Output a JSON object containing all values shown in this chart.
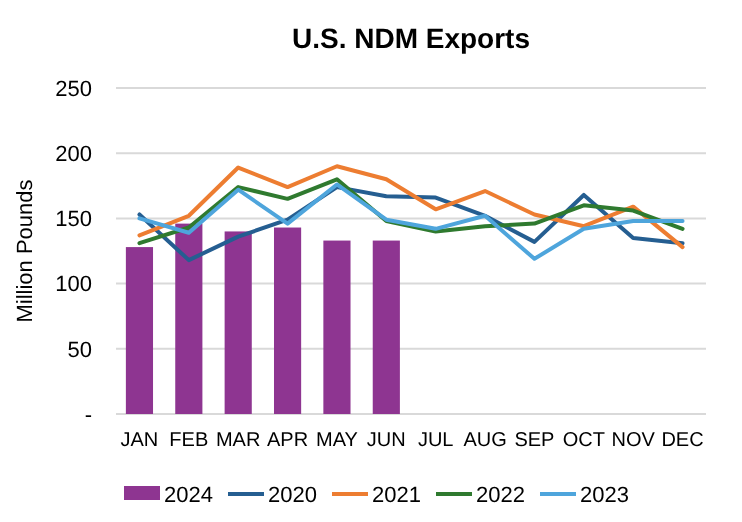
{
  "chart_data": {
    "type": "bar",
    "title": "U.S. NDM Exports",
    "ylabel": "Million Pounds",
    "categories": [
      "JAN",
      "FEB",
      "MAR",
      "APR",
      "MAY",
      "JUN",
      "JUL",
      "AUG",
      "SEP",
      "OCT",
      "NOV",
      "DEC"
    ],
    "series": [
      {
        "name": "2024",
        "color": "#8e3591",
        "values": [
          128,
          146,
          140,
          143,
          133,
          133,
          null,
          null,
          null,
          null,
          null,
          null
        ]
      },
      {
        "name": "2020",
        "type": "line",
        "color": "#255e91",
        "values": [
          153,
          118,
          136,
          149,
          174,
          167,
          166,
          152,
          132,
          168,
          135,
          131
        ]
      },
      {
        "name": "2021",
        "type": "line",
        "color": "#ed7d31",
        "values": [
          137,
          152,
          189,
          174,
          190,
          180,
          157,
          171,
          153,
          144,
          159,
          128
        ]
      },
      {
        "name": "2022",
        "type": "line",
        "color": "#2f7a2f",
        "values": [
          131,
          143,
          174,
          165,
          180,
          148,
          140,
          144,
          146,
          160,
          156,
          142
        ]
      },
      {
        "name": "2023",
        "type": "line",
        "color": "#4ea5dc",
        "values": [
          150,
          139,
          172,
          146,
          176,
          149,
          142,
          152,
          119,
          142,
          148,
          148
        ]
      }
    ],
    "ylim": [
      0,
      250
    ],
    "yticks": [
      {
        "value": 0,
        "label": "-"
      },
      50,
      100,
      150,
      200,
      250
    ],
    "grid": "y",
    "legend": "bottom"
  }
}
